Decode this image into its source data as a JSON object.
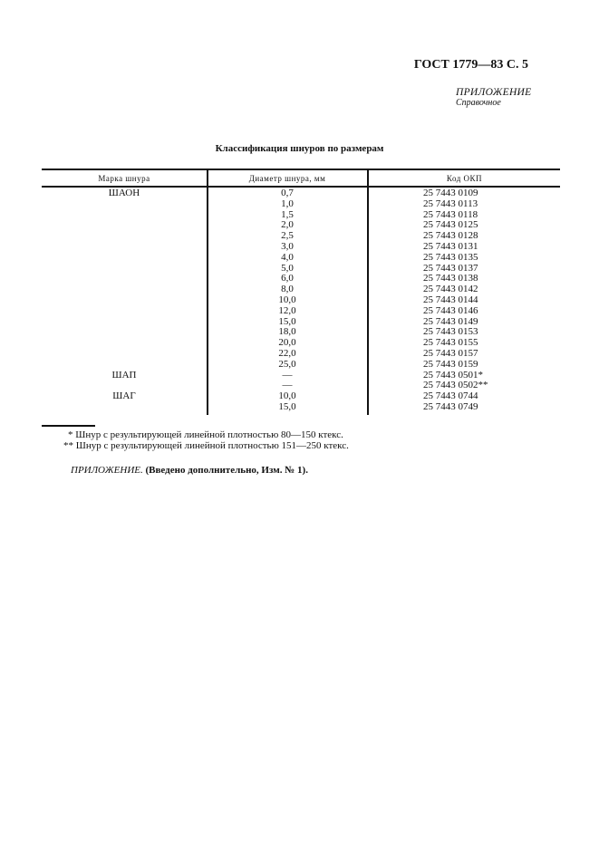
{
  "header": {
    "doc_ref": "ГОСТ 1779—83 С. 5",
    "appendix": "ПРИЛОЖЕНИЕ",
    "appendix_type": "Справочное"
  },
  "table": {
    "title": "Классификация шнуров по размерам",
    "columns": [
      "Марка шнура",
      "Диаметр шнура, мм",
      "Код ОКП"
    ],
    "rows": [
      [
        "ШАОН",
        "0,7",
        "25 7443 0109"
      ],
      [
        "",
        "1,0",
        "25 7443 0113"
      ],
      [
        "",
        "1,5",
        "25 7443 0118"
      ],
      [
        "",
        "2,0",
        "25 7443 0125"
      ],
      [
        "",
        "2,5",
        "25 7443 0128"
      ],
      [
        "",
        "3,0",
        "25 7443 0131"
      ],
      [
        "",
        "4,0",
        "25 7443 0135"
      ],
      [
        "",
        "5,0",
        "25 7443 0137"
      ],
      [
        "",
        "6,0",
        "25 7443 0138"
      ],
      [
        "",
        "8,0",
        "25 7443 0142"
      ],
      [
        "",
        "10,0",
        "25 7443 0144"
      ],
      [
        "",
        "12,0",
        "25 7443 0146"
      ],
      [
        "",
        "15,0",
        "25 7443 0149"
      ],
      [
        "",
        "18,0",
        "25 7443 0153"
      ],
      [
        "",
        "20,0",
        "25 7443 0155"
      ],
      [
        "",
        "22,0",
        "25 7443 0157"
      ],
      [
        "",
        "25,0",
        "25 7443 0159"
      ],
      [
        "ШАП",
        "—",
        "25 7443 0501*"
      ],
      [
        "",
        "—",
        "25 7443 0502**"
      ],
      [
        "ШАГ",
        "10,0",
        "25 7443 0744"
      ],
      [
        "",
        "15,0",
        "25 7443 0749"
      ]
    ]
  },
  "footnotes": [
    "* Шнур с результирующей линейной плотностью 80—150 ктекс.",
    "** Шнур с результирующей линейной плотностью 151—250 ктекс."
  ],
  "addendum": {
    "italic": "ПРИЛОЖЕНИЕ.",
    "bold": "(Введено дополнительно, Изм. № 1)."
  }
}
